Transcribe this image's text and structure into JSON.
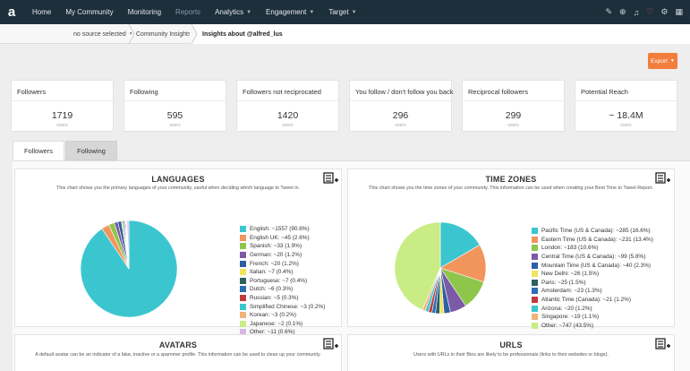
{
  "nav": {
    "logo": "a",
    "items": [
      {
        "label": "Home",
        "muted": false,
        "caret": false
      },
      {
        "label": "My Community",
        "muted": false,
        "caret": false
      },
      {
        "label": "Monitoring",
        "muted": false,
        "caret": false
      },
      {
        "label": "Reports",
        "muted": true,
        "caret": false
      },
      {
        "label": "Analytics",
        "muted": false,
        "caret": true
      },
      {
        "label": "Engagement",
        "muted": false,
        "caret": true
      },
      {
        "label": "Target",
        "muted": false,
        "caret": true
      }
    ]
  },
  "breadcrumb": {
    "source": "no source selected",
    "section": "Community Insights",
    "current": "Insights about @alfred_lus"
  },
  "export_label": "Export",
  "stats": [
    {
      "title": "Followers",
      "value": "1719",
      "sub": "users"
    },
    {
      "title": "Following",
      "value": "595",
      "sub": "users"
    },
    {
      "title": "Followers not reciprocated",
      "value": "1420",
      "sub": "users"
    },
    {
      "title": "You follow / don't follow you back",
      "value": "296",
      "sub": "users"
    },
    {
      "title": "Reciprocal followers",
      "value": "299",
      "sub": "users"
    },
    {
      "title": "Potential Reach",
      "value": "~ 18.4M",
      "sub": "users"
    }
  ],
  "tabs": [
    {
      "label": "Followers",
      "active": true
    },
    {
      "label": "Following",
      "active": false
    }
  ],
  "panels": {
    "languages": {
      "title": "LANGUAGES",
      "desc": "This chart shows you the primary languages of your community, useful when deciding which language to Tweet in."
    },
    "timezones": {
      "title": "TIME ZONES",
      "desc": "This chart shows you the time zones of your community. This information can be used when creating your Best Time to Tweet Report."
    },
    "avatars": {
      "title": "AVATARS",
      "desc": "A default avatar can be an indicator of a fake, inactive or a spammer profile. This information can be used to clean up your community."
    },
    "urls": {
      "title": "URLS",
      "desc": "Users with URLs in their Bios are likely to be professionals (links to their websites or blogs)."
    }
  },
  "chart_data": [
    {
      "type": "pie",
      "title": "LANGUAGES",
      "legend_position": "right",
      "slices": [
        {
          "label": "English: ~1557 (90.6%)",
          "value": 90.6,
          "color": "#3bc6cf"
        },
        {
          "label": "English UK: ~45 (2.6%)",
          "value": 2.6,
          "color": "#f2955d"
        },
        {
          "label": "Spanish: ~33 (1.9%)",
          "value": 1.9,
          "color": "#8ec64b"
        },
        {
          "label": "German: ~20 (1.2%)",
          "value": 1.2,
          "color": "#7b5aa6"
        },
        {
          "label": "French: ~20 (1.2%)",
          "value": 1.2,
          "color": "#2e5fa6"
        },
        {
          "label": "Italian: ~7 (0.4%)",
          "value": 0.4,
          "color": "#f0e45c"
        },
        {
          "label": "Portuguese: ~7 (0.4%)",
          "value": 0.4,
          "color": "#2f5f5f"
        },
        {
          "label": "Dutch: ~6 (0.3%)",
          "value": 0.3,
          "color": "#2a6db4"
        },
        {
          "label": "Russian: ~5 (0.3%)",
          "value": 0.3,
          "color": "#c23b3b"
        },
        {
          "label": "Simplified Chinese: ~3 (0.2%)",
          "value": 0.2,
          "color": "#3bc6cf"
        },
        {
          "label": "Korean: ~3 (0.2%)",
          "value": 0.2,
          "color": "#f2b27a"
        },
        {
          "label": "Japanese: ~2 (0.1%)",
          "value": 0.1,
          "color": "#c9ec85"
        },
        {
          "label": "Other: ~11 (0.6%)",
          "value": 0.6,
          "color": "#d8b4e8"
        }
      ]
    },
    {
      "type": "pie",
      "title": "TIME ZONES",
      "legend_position": "right",
      "slices": [
        {
          "label": "Pacific Time (US & Canada): ~285 (16.6%)",
          "value": 16.6,
          "color": "#3bc6cf"
        },
        {
          "label": "Eastern Time (US & Canada): ~231 (13.4%)",
          "value": 13.4,
          "color": "#f2955d"
        },
        {
          "label": "London: ~183 (10.6%)",
          "value": 10.6,
          "color": "#8ec64b"
        },
        {
          "label": "Central Time (US & Canada): ~99 (5.8%)",
          "value": 5.8,
          "color": "#7b5aa6"
        },
        {
          "label": "Mountain Time (US & Canada): ~40 (2.3%)",
          "value": 2.3,
          "color": "#2e5fa6"
        },
        {
          "label": "New Delhi: ~26 (1.5%)",
          "value": 1.5,
          "color": "#f0e45c"
        },
        {
          "label": "Paris: ~25 (1.5%)",
          "value": 1.5,
          "color": "#2f5f5f"
        },
        {
          "label": "Amsterdam: ~23 (1.3%)",
          "value": 1.3,
          "color": "#2a6db4"
        },
        {
          "label": "Atlantic Time (Canada): ~21 (1.2%)",
          "value": 1.2,
          "color": "#c23b3b"
        },
        {
          "label": "Arizona: ~20 (1.2%)",
          "value": 1.2,
          "color": "#3bc6cf"
        },
        {
          "label": "Singapore: ~19 (1.1%)",
          "value": 1.1,
          "color": "#f2b27a"
        },
        {
          "label": "Other: ~747 (43.5%)",
          "value": 43.5,
          "color": "#c9ec85"
        }
      ]
    }
  ]
}
